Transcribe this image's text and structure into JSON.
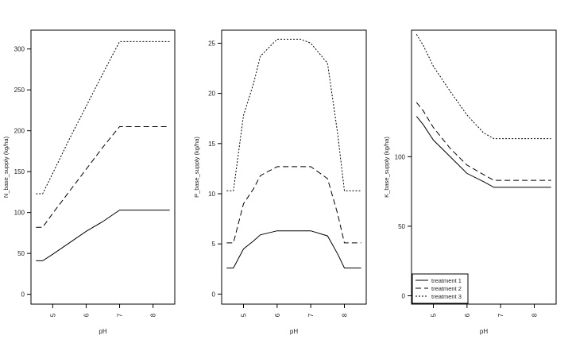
{
  "chart_data": [
    {
      "type": "line",
      "xlabel": "pH",
      "ylabel": "N_base_supply (kg/ha)",
      "xlim": [
        4.35,
        8.65
      ],
      "ylim": [
        -12,
        323
      ],
      "xticks": [
        5,
        6,
        7,
        8
      ],
      "yticks": [
        0,
        50,
        100,
        150,
        200,
        250,
        300
      ],
      "legend": null,
      "series": [
        {
          "name": "treatment 1",
          "dash": "solid",
          "points": [
            [
              4.5,
              41
            ],
            [
              4.7,
              41
            ],
            [
              5.0,
              49
            ],
            [
              5.5,
              63
            ],
            [
              6.0,
              77
            ],
            [
              6.5,
              89
            ],
            [
              7.0,
              103
            ],
            [
              8.5,
              103
            ]
          ]
        },
        {
          "name": "treatment 2",
          "dash": "dashed",
          "points": [
            [
              4.5,
              82
            ],
            [
              4.7,
              82
            ],
            [
              5.0,
              99
            ],
            [
              5.5,
              126
            ],
            [
              6.0,
              153
            ],
            [
              6.5,
              180
            ],
            [
              7.0,
              205
            ],
            [
              8.5,
              205
            ]
          ]
        },
        {
          "name": "treatment 3",
          "dash": "dotted",
          "points": [
            [
              4.5,
              123
            ],
            [
              4.7,
              123
            ],
            [
              5.0,
              148
            ],
            [
              5.5,
              190
            ],
            [
              6.0,
              230
            ],
            [
              6.5,
              270
            ],
            [
              7.0,
              309
            ],
            [
              8.5,
              309
            ]
          ]
        }
      ]
    },
    {
      "type": "line",
      "xlabel": "pH",
      "ylabel": "P_base_supply (kg/ha)",
      "xlim": [
        4.35,
        8.65
      ],
      "ylim": [
        -1,
        26.3
      ],
      "xticks": [
        5,
        6,
        7,
        8
      ],
      "yticks": [
        0,
        5,
        10,
        15,
        20,
        25
      ],
      "legend": null,
      "series": [
        {
          "name": "treatment 1",
          "dash": "solid",
          "points": [
            [
              4.5,
              2.6
            ],
            [
              4.7,
              2.6
            ],
            [
              5.0,
              4.5
            ],
            [
              5.3,
              5.3
            ],
            [
              5.5,
              5.9
            ],
            [
              6.0,
              6.3
            ],
            [
              7.0,
              6.3
            ],
            [
              7.5,
              5.8
            ],
            [
              7.8,
              4.0
            ],
            [
              8.0,
              2.6
            ],
            [
              8.5,
              2.6
            ]
          ]
        },
        {
          "name": "treatment 2",
          "dash": "dashed",
          "points": [
            [
              4.5,
              5.1
            ],
            [
              4.7,
              5.1
            ],
            [
              5.0,
              9.0
            ],
            [
              5.3,
              10.5
            ],
            [
              5.5,
              11.8
            ],
            [
              6.0,
              12.7
            ],
            [
              7.0,
              12.7
            ],
            [
              7.5,
              11.5
            ],
            [
              7.8,
              8.0
            ],
            [
              8.0,
              5.1
            ],
            [
              8.5,
              5.1
            ]
          ]
        },
        {
          "name": "treatment 3",
          "dash": "dotted",
          "points": [
            [
              4.5,
              10.3
            ],
            [
              4.7,
              10.3
            ],
            [
              5.0,
              17.8
            ],
            [
              5.3,
              21.0
            ],
            [
              5.5,
              23.7
            ],
            [
              6.0,
              25.4
            ],
            [
              6.7,
              25.4
            ],
            [
              7.0,
              25.0
            ],
            [
              7.5,
              23.0
            ],
            [
              7.8,
              16.0
            ],
            [
              8.0,
              10.3
            ],
            [
              8.5,
              10.3
            ]
          ]
        }
      ]
    },
    {
      "type": "line",
      "xlabel": "pH",
      "ylabel": "K_base_supply (kg/ha)",
      "xlim": [
        4.35,
        8.65
      ],
      "ylim": [
        -6,
        191
      ],
      "xticks": [
        5,
        6,
        7,
        8
      ],
      "yticks": [
        0,
        50,
        100
      ],
      "legend": {
        "position": "bottom-left",
        "entries": [
          {
            "label": "treatment 1",
            "dash": "solid"
          },
          {
            "label": "treatment 2",
            "dash": "dashed"
          },
          {
            "label": "treatment 3",
            "dash": "dotted"
          }
        ]
      },
      "series": [
        {
          "name": "treatment 1",
          "dash": "solid",
          "points": [
            [
              4.5,
              129
            ],
            [
              4.7,
              123
            ],
            [
              5.0,
              112
            ],
            [
              5.5,
              100
            ],
            [
              6.0,
              88
            ],
            [
              6.5,
              82
            ],
            [
              6.8,
              78
            ],
            [
              8.5,
              78
            ]
          ]
        },
        {
          "name": "treatment 2",
          "dash": "dashed",
          "points": [
            [
              4.5,
              139
            ],
            [
              4.7,
              133
            ],
            [
              5.0,
              121
            ],
            [
              5.5,
              106
            ],
            [
              6.0,
              94
            ],
            [
              6.5,
              87
            ],
            [
              6.8,
              83
            ],
            [
              8.5,
              83
            ]
          ]
        },
        {
          "name": "treatment 3",
          "dash": "dotted",
          "points": [
            [
              4.5,
              188
            ],
            [
              4.7,
              180
            ],
            [
              5.0,
              165
            ],
            [
              5.5,
              147
            ],
            [
              6.0,
              130
            ],
            [
              6.5,
              117
            ],
            [
              6.8,
              113
            ],
            [
              8.5,
              113
            ]
          ]
        }
      ]
    }
  ]
}
